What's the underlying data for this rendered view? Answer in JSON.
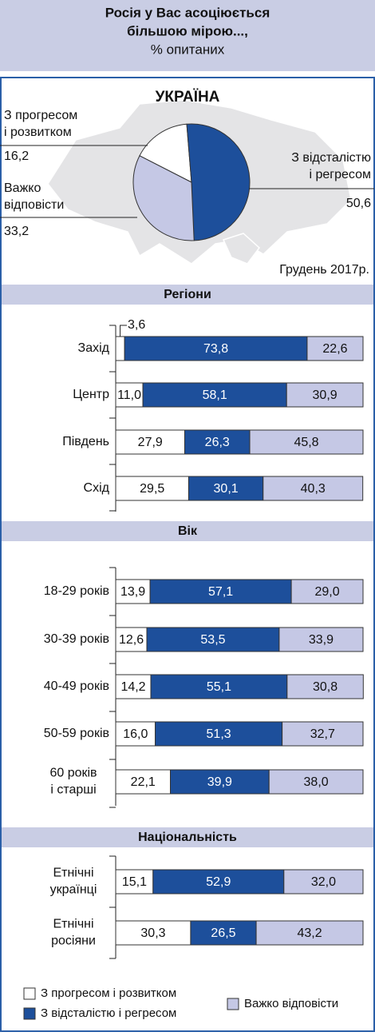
{
  "header": {
    "title": [
      "Росія у Вас асоціюється",
      "більшою мірою...,"
    ],
    "subtitle": "% опитаних"
  },
  "chart_data": [
    {
      "type": "pie",
      "title": "УКРАЇНА",
      "categories": [
        [
          "З прогресом",
          "і розвитком"
        ],
        [
          "З відсталістю",
          "і регресом"
        ],
        [
          "Важко",
          "відповісти"
        ]
      ],
      "values": [
        16.2,
        50.6,
        33.2
      ],
      "value_labels": [
        "16,2",
        "50,6",
        "33,2"
      ],
      "colors": [
        "#ffffff",
        "#1d4f9b",
        "#c5c8e5"
      ],
      "startangle": -63,
      "annotation": "Грудень 2017р."
    },
    {
      "type": "stacked_barh",
      "title": "Регіони",
      "categories": [
        [
          "Захід"
        ],
        [
          "Центр"
        ],
        [
          "Південь"
        ],
        [
          "Схід"
        ]
      ],
      "xlim": [
        0,
        100
      ],
      "series": [
        {
          "color": "#ffffff",
          "values": [
            3.6,
            11.0,
            27.9,
            29.5
          ],
          "value_labels": [
            "3,6",
            "11,0",
            "27,9",
            "29,5"
          ]
        },
        {
          "color": "#1d4f9b",
          "values": [
            73.8,
            58.1,
            26.3,
            30.1
          ],
          "value_labels": [
            "73,8",
            "58,1",
            "26,3",
            "30,1"
          ]
        },
        {
          "color": "#c5c8e5",
          "values": [
            22.6,
            30.9,
            45.8,
            40.3
          ],
          "value_labels": [
            "22,6",
            "30,9",
            "45,8",
            "40,3"
          ]
        }
      ]
    },
    {
      "type": "stacked_barh",
      "title": "Вік",
      "categories": [
        [
          "18-29 років"
        ],
        [
          "30-39 років"
        ],
        [
          "40-49 років"
        ],
        [
          "50-59 років"
        ],
        [
          "60 років",
          "і старші"
        ]
      ],
      "xlim": [
        0,
        100
      ],
      "series": [
        {
          "color": "#ffffff",
          "values": [
            13.9,
            12.6,
            14.2,
            16.0,
            22.1
          ],
          "value_labels": [
            "13,9",
            "12,6",
            "14,2",
            "16,0",
            "22,1"
          ]
        },
        {
          "color": "#1d4f9b",
          "values": [
            57.1,
            53.5,
            55.1,
            51.3,
            39.9
          ],
          "value_labels": [
            "57,1",
            "53,5",
            "55,1",
            "51,3",
            "39,9"
          ]
        },
        {
          "color": "#c5c8e5",
          "values": [
            29.0,
            33.9,
            30.8,
            32.7,
            38.0
          ],
          "value_labels": [
            "29,0",
            "33,9",
            "30,8",
            "32,7",
            "38,0"
          ]
        }
      ]
    },
    {
      "type": "stacked_barh",
      "title": "Національність",
      "categories": [
        [
          "Етнічні",
          "українці"
        ],
        [
          "Етнічні",
          "росіяни"
        ]
      ],
      "xlim": [
        0,
        100
      ],
      "legend": true,
      "series": [
        {
          "name": "З прогресом і розвитком",
          "color": "#ffffff",
          "values": [
            15.1,
            30.3
          ],
          "value_labels": [
            "15,1",
            "30,3"
          ]
        },
        {
          "name": "З відсталістю і регресом",
          "color": "#1d4f9b",
          "values": [
            52.9,
            26.5
          ],
          "value_labels": [
            "52,9",
            "26,5"
          ]
        },
        {
          "name": "Важко відповісти",
          "color": "#c5c8e5",
          "values": [
            32.0,
            43.2
          ],
          "value_labels": [
            "32,0",
            "43,2"
          ]
        }
      ]
    }
  ]
}
